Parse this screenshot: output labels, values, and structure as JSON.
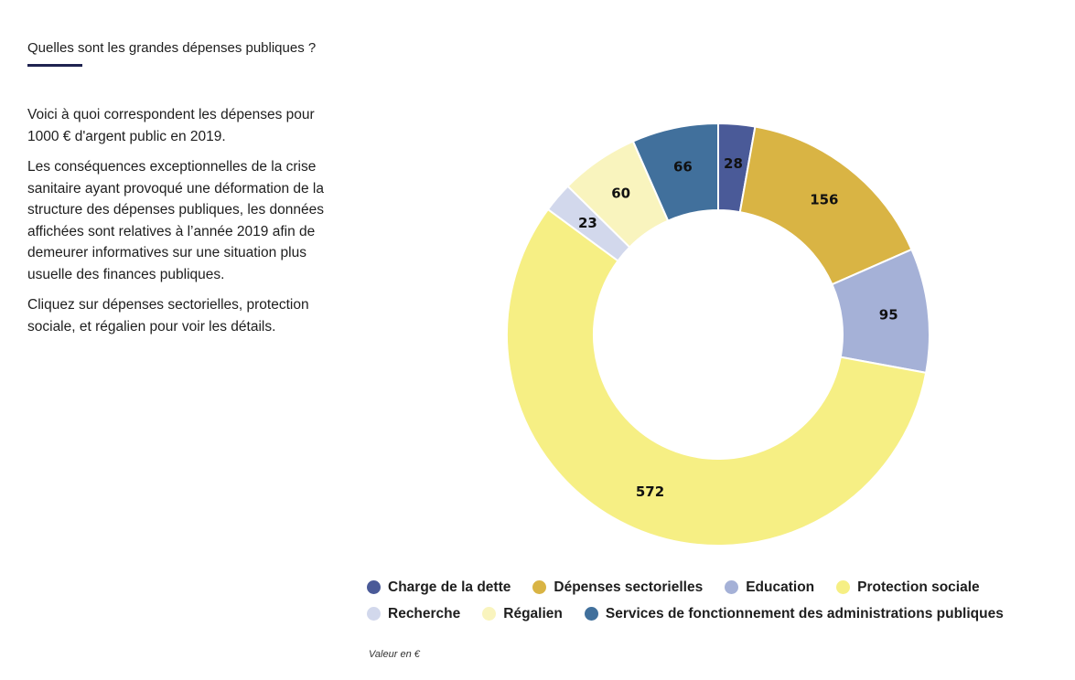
{
  "header": {
    "title": "Quelles sont les grandes dépenses publiques ?"
  },
  "intro": {
    "p1": "Voici à quoi correspondent les dépenses pour 1000 € d'argent public en 2019.",
    "p2": "Les conséquences exceptionnelles de la crise sanitaire ayant provoqué une déformation de la structure des dépenses publiques, les données affichées sont relatives à l’année 2019 afin de demeurer informatives sur une situation plus usuelle des finances publiques.",
    "p3": "Cliquez sur dépenses sectorielles, protection sociale, et régalien pour voir les détails."
  },
  "chart_data": {
    "type": "pie",
    "donut": true,
    "title": "",
    "categories": [
      "Charge de la dette",
      "Dépenses sectorielles",
      "Education",
      "Protection sociale",
      "Recherche",
      "Régalien",
      "Services de fonctionnement des administrations publiques"
    ],
    "values": [
      28,
      156,
      95,
      572,
      23,
      60,
      66
    ],
    "colors": [
      "#4a5a98",
      "#d9b444",
      "#a5b1d7",
      "#f6ef84",
      "#d2d8ec",
      "#f9f4be",
      "#41709c"
    ],
    "legend_position": "bottom",
    "unit_note": "Valeur en €"
  }
}
